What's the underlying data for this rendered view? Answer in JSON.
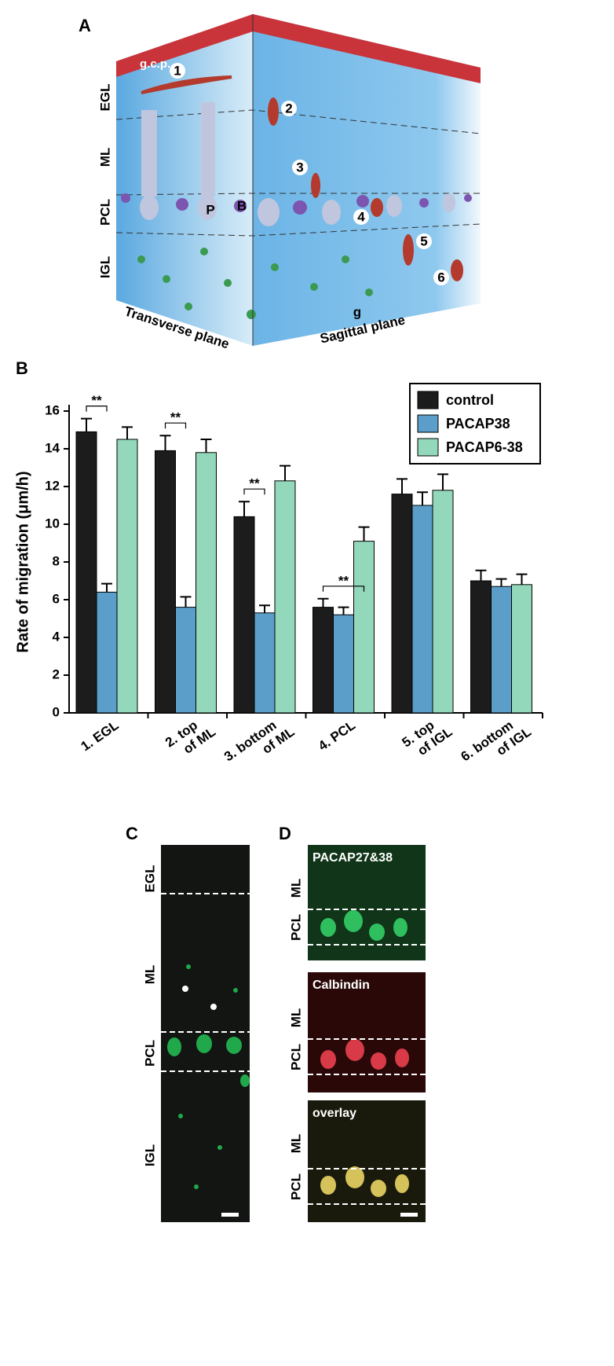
{
  "panel_a": {
    "label": "A",
    "gcp": "g.c.p.",
    "layers": [
      "EGL",
      "ML",
      "PCL",
      "IGL"
    ],
    "steps": [
      "1",
      "2",
      "3",
      "4",
      "5",
      "6"
    ],
    "cells": [
      "P",
      "B",
      "g"
    ],
    "planes": [
      "Transverse plane",
      "Sagittal plane"
    ]
  },
  "panel_b_label": "B",
  "chart_data": {
    "type": "bar",
    "ylabel": "Rate of migration (μm/h)",
    "categories": [
      "1. EGL",
      "2. top\nof ML",
      "3. bottom\nof ML",
      "4. PCL",
      "5. top\nof IGL",
      "6. bottom\nof IGL"
    ],
    "series": [
      {
        "name": "control",
        "color": "#1c1c1c",
        "values": [
          14.9,
          13.9,
          10.4,
          5.6,
          11.6,
          7.0
        ],
        "errors": [
          0.7,
          0.8,
          0.8,
          0.45,
          0.8,
          0.55
        ]
      },
      {
        "name": "PACAP38",
        "color": "#5b9ec9",
        "values": [
          6.4,
          5.6,
          5.3,
          5.2,
          11.0,
          6.7
        ],
        "errors": [
          0.45,
          0.55,
          0.4,
          0.4,
          0.7,
          0.4
        ]
      },
      {
        "name": "PACAP6-38",
        "color": "#93d8bb",
        "values": [
          14.5,
          13.8,
          12.3,
          9.1,
          11.8,
          6.8
        ],
        "errors": [
          0.65,
          0.7,
          0.8,
          0.75,
          0.85,
          0.55
        ]
      }
    ],
    "significance": [
      "**",
      "**",
      "**",
      "**"
    ],
    "ylim": [
      0,
      16
    ],
    "yticks": [
      0,
      2,
      4,
      6,
      8,
      10,
      12,
      14,
      16
    ],
    "legend": "upper right",
    "grid": false
  },
  "panel_c": {
    "label": "C",
    "layers": [
      "EGL",
      "ML",
      "PCL",
      "IGL"
    ]
  },
  "panel_d": {
    "label": "D",
    "images": [
      "PACAP27&38",
      "Calbindin",
      "overlay"
    ],
    "layers": [
      "ML",
      "PCL"
    ]
  }
}
